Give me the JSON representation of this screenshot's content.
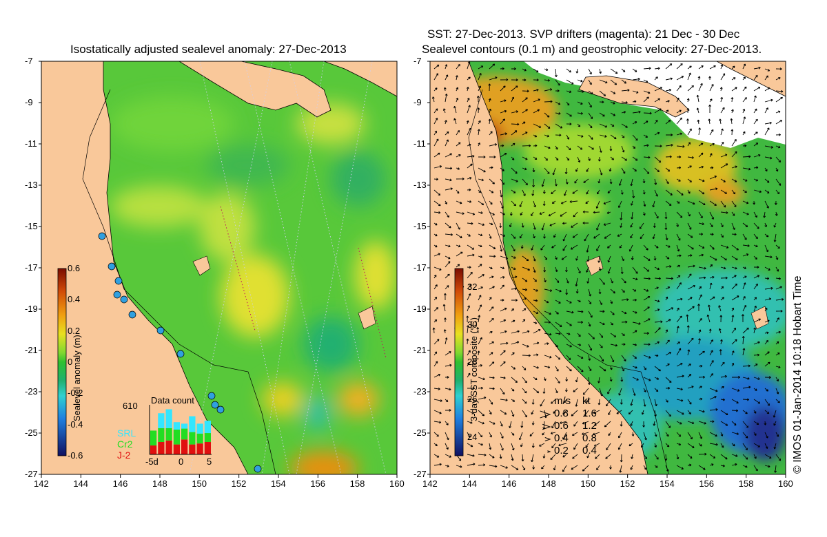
{
  "left_panel": {
    "title": "Isostatically adjusted sealevel anomaly: 27-Dec-2013",
    "colorbar": {
      "title": "Sealevel anomaly (m)",
      "ticks": [
        "0.6",
        "0.4",
        "0.2",
        "0",
        "-0.2",
        "-0.4",
        "-0.6"
      ],
      "values": [
        0.6,
        0.4,
        0.2,
        0,
        -0.2,
        -0.4,
        -0.6
      ]
    },
    "data_count": {
      "title": "Data count",
      "max_label": "610",
      "x_ticks": [
        "-5d",
        "0",
        "5"
      ],
      "legend": [
        {
          "label": "SRL",
          "color": "#33e6ff"
        },
        {
          "label": "Cr2",
          "color": "#22dd22"
        },
        {
          "label": "J-2",
          "color": "#e01010"
        }
      ],
      "bars": [
        {
          "j2": 0.18,
          "cr2": 0.3,
          "srl": 0.0
        },
        {
          "j2": 0.25,
          "cr2": 0.28,
          "srl": 0.3
        },
        {
          "j2": 0.28,
          "cr2": 0.25,
          "srl": 0.38
        },
        {
          "j2": 0.2,
          "cr2": 0.3,
          "srl": 0.15
        },
        {
          "j2": 0.3,
          "cr2": 0.22,
          "srl": 0.1
        },
        {
          "j2": 0.2,
          "cr2": 0.25,
          "srl": 0.32
        },
        {
          "j2": 0.22,
          "cr2": 0.2,
          "srl": 0.2
        },
        {
          "j2": 0.25,
          "cr2": 0.18,
          "srl": 0.25
        }
      ]
    }
  },
  "right_panel": {
    "title_line1": "SST: 27-Dec-2013. SVP drifters (magenta): 21 Dec - 30 Dec",
    "title_line2": "Sealevel contours (0.1 m) and geostrophic velocity: 27-Dec-2013.",
    "colorbar": {
      "title": "3-day SST composite (°C)",
      "ticks": [
        "32",
        "30",
        "28",
        "26",
        "24"
      ],
      "values": [
        32,
        30,
        28,
        26,
        24
      ]
    },
    "velocity_legend": {
      "header_ms": "m/s",
      "header_kt": "kt",
      "rows": [
        {
          "ms": "0.8",
          "kt": "1.6",
          "v": 0.8
        },
        {
          "ms": "0.6",
          "kt": "1.2",
          "v": 0.6
        },
        {
          "ms": "0.4",
          "kt": "0.8",
          "v": 0.4
        },
        {
          "ms": "0.2",
          "kt": "0.4",
          "v": 0.2
        }
      ]
    }
  },
  "axes": {
    "lat_ticks": [
      "-7",
      "-9",
      "-11",
      "-13",
      "-15",
      "-17",
      "-19",
      "-21",
      "-23",
      "-25",
      "-27"
    ],
    "lon_ticks": [
      "142",
      "144",
      "146",
      "148",
      "150",
      "152",
      "154",
      "156",
      "158",
      "160"
    ]
  },
  "credit": "© IMOS 01-Jan-2014 10:18 Hobart Time",
  "colors": {
    "land": "#f9c89a",
    "ocean_base": "#58c83a",
    "coast": "#000000"
  }
}
